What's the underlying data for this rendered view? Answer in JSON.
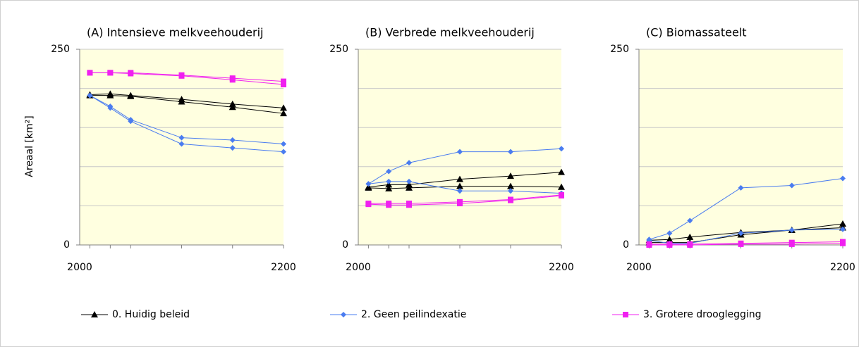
{
  "chart_data": [
    {
      "type": "line",
      "title": "(A) Intensieve melkveehouderij",
      "ylabel": "Areaal [km²]",
      "x": [
        2010,
        2030,
        2050,
        2100,
        2150,
        2200
      ],
      "xlim": [
        2000,
        2200
      ],
      "xticks": [
        2000,
        2200
      ],
      "ylim": [
        0,
        250
      ],
      "yticks": [
        0,
        250
      ],
      "ygrid": [
        50,
        100,
        150,
        200,
        250
      ],
      "series": [
        {
          "color": "#000000",
          "marker": "triangle",
          "values": [
            [
              192,
              193,
              191,
              186,
              180,
              175
            ],
            [
              191,
              191,
              190,
              183,
              176,
              168
            ]
          ]
        },
        {
          "color": "#4a7cf0",
          "marker": "diamond",
          "values": [
            [
              191,
              177,
              160,
              137,
              134,
              129
            ],
            [
              191,
              175,
              158,
              129,
              124,
              119
            ]
          ]
        },
        {
          "color": "#f020f0",
          "marker": "square",
          "values": [
            [
              220,
              220,
              220,
              217,
              213,
              209
            ],
            [
              220,
              220,
              219,
              216,
              211,
              205
            ]
          ]
        }
      ]
    },
    {
      "type": "line",
      "title": "(B) Verbrede melkveehouderij",
      "x": [
        2010,
        2030,
        2050,
        2100,
        2150,
        2200
      ],
      "xlim": [
        2000,
        2200
      ],
      "xticks": [
        2000,
        2200
      ],
      "ylim": [
        0,
        250
      ],
      "yticks": [
        0,
        250
      ],
      "ygrid": [
        50,
        100,
        150,
        200,
        250
      ],
      "series": [
        {
          "color": "#000000",
          "marker": "triangle",
          "values": [
            [
              74,
              77,
              77,
              84,
              88,
              93
            ],
            [
              73,
              72,
              73,
              75,
              75,
              74
            ]
          ]
        },
        {
          "color": "#4a7cf0",
          "marker": "diamond",
          "values": [
            [
              78,
              94,
              105,
              119,
              119,
              123
            ],
            [
              78,
              81,
              81,
              69,
              69,
              66
            ]
          ]
        },
        {
          "color": "#f020f0",
          "marker": "square",
          "values": [
            [
              53,
              53,
              53,
              55,
              58,
              64
            ],
            [
              52,
              51,
              51,
              53,
              57,
              63
            ]
          ]
        }
      ]
    },
    {
      "type": "line",
      "title": "(C) Biomassateelt",
      "x": [
        2010,
        2030,
        2050,
        2100,
        2150,
        2200
      ],
      "xlim": [
        2000,
        2200
      ],
      "xticks": [
        2000,
        2200
      ],
      "ylim": [
        0,
        250
      ],
      "yticks": [
        0,
        250
      ],
      "ygrid": [
        50,
        100,
        150,
        200,
        250
      ],
      "series": [
        {
          "color": "#000000",
          "marker": "triangle",
          "values": [
            [
              6,
              7,
              10,
              16,
              19,
              27
            ],
            [
              3,
              3,
              3,
              13,
              19,
              22
            ]
          ]
        },
        {
          "color": "#4a7cf0",
          "marker": "diamond",
          "values": [
            [
              7,
              15,
              31,
              73,
              76,
              85
            ],
            [
              6,
              2,
              2,
              15,
              19,
              20
            ]
          ]
        },
        {
          "color": "#f020f0",
          "marker": "square",
          "values": [
            [
              1,
              1,
              1,
              2,
              3,
              4
            ],
            [
              0,
              0,
              0,
              1,
              1,
              2
            ]
          ]
        }
      ]
    }
  ],
  "legend": [
    {
      "name": "0. Huidig beleid",
      "color": "#000000",
      "marker": "triangle"
    },
    {
      "name": "2. Geen peilindexatie",
      "color": "#4a7cf0",
      "marker": "diamond"
    },
    {
      "name": "3. Grotere drooglegging",
      "color": "#f020f0",
      "marker": "square"
    }
  ]
}
